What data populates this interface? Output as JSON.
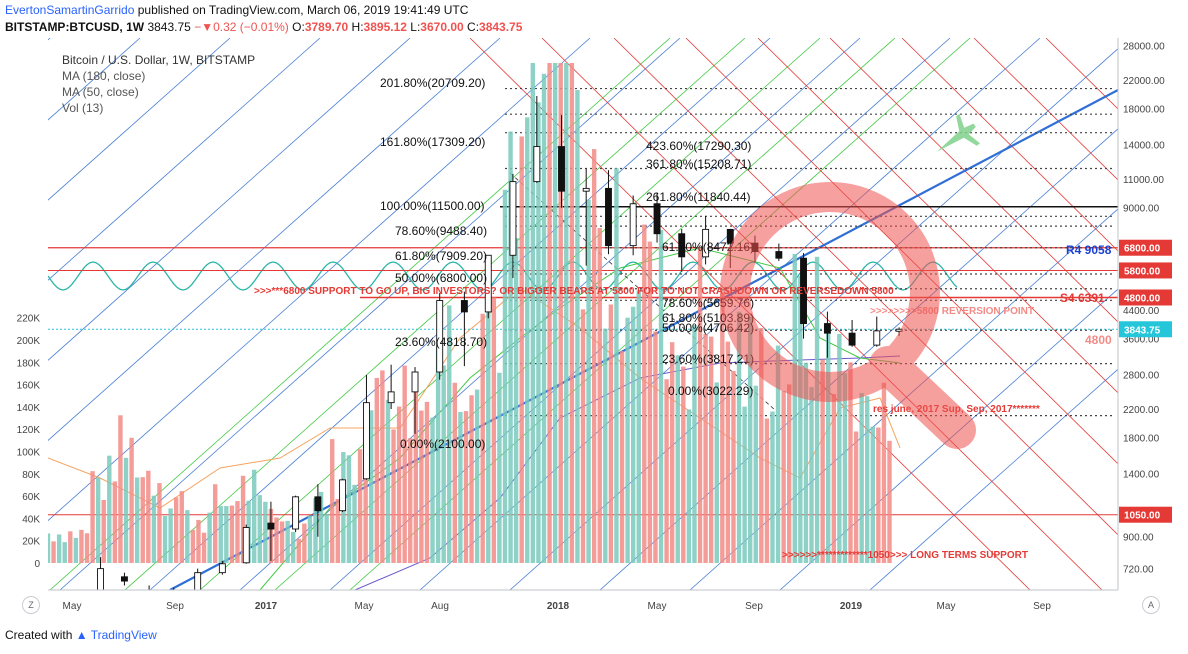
{
  "header": {
    "author": "EvertonSamartinGarrido",
    "published": "published on TradingView.com, March 06, 2019 19:41:49 UTC",
    "symbol": "BITSTAMP:BTCUSD, 1W",
    "price": "3843.75",
    "change": "−▼0.32 (−0.01%)",
    "open_label": "O:",
    "open": "3789.70",
    "high_label": "H:",
    "high": "3895.12",
    "low_label": "L:",
    "low": "3670.00",
    "close_label": "C:",
    "close": "3843.75"
  },
  "legend": {
    "title": "Bitcoin / U.S. Dollar, 1W, BITSTAMP",
    "ma180": "MA (180, close)",
    "ma50": "MA (50, close)",
    "vol": "Vol (13)"
  },
  "colors": {
    "up": "#79c9bd",
    "down": "#f28b86",
    "candle": "#2962ff",
    "red_line": "#e53935",
    "green_line": "#43c943",
    "blue_line": "#4a7fd4",
    "ma180": "#6a5acd",
    "ma50": "#43c943",
    "volume_ma": "#f4a460"
  },
  "footer": {
    "created": "Created with",
    "brand": "TradingView"
  },
  "buttons": {
    "left": "Z",
    "right": "A"
  },
  "chart_data": {
    "type": "candlestick",
    "price_scale": "log",
    "price_ticks": [
      720,
      900,
      1050,
      1400,
      1800,
      2200,
      2800,
      3600,
      4400,
      5800,
      6800,
      9000,
      11000,
      14000,
      18000,
      22000,
      28000
    ],
    "volume_ticks": [
      "0",
      "20K",
      "40K",
      "60K",
      "80K",
      "100K",
      "120K",
      "140K",
      "160K",
      "180K",
      "200K",
      "220K"
    ],
    "time_ticks": [
      "May",
      "Sep",
      "2017",
      "May",
      "Aug",
      "2018",
      "May",
      "Sep",
      "2019",
      "May",
      "Sep"
    ],
    "price_levels": [
      {
        "label": "6800.00",
        "value": 6800,
        "color": "#e53935"
      },
      {
        "label": "5800.00",
        "value": 5800,
        "color": "#e53935"
      },
      {
        "label": "4800.00",
        "value": 4800,
        "color": "#e53935"
      },
      {
        "label": "3843.75",
        "value": 3843.75,
        "color": "#26c6da"
      },
      {
        "label": "1050.00",
        "value": 1050,
        "color": "#e53935"
      }
    ],
    "annotations": [
      {
        "text": "161.80%(17309.20)"
      },
      {
        "text": "100.00%(11500.00)"
      },
      {
        "text": "78.60%(9488.40)"
      },
      {
        "text": "61.80%(7909.20)"
      },
      {
        "text": "50.00%(6800.00)"
      },
      {
        "text": "23.60%(4818.70)"
      },
      {
        "text": "0.00%(2100.00)"
      },
      {
        "text": "423.60%(17290.30)"
      },
      {
        "text": "361.80%(15208.71)"
      },
      {
        "text": "261.80%(11840.44)"
      },
      {
        "text": "61.80%(8472.16)"
      },
      {
        "text": "78.60%(5659.76)"
      },
      {
        "text": "61.80%(5103.89)"
      },
      {
        "text": "50.00%(4706.42)"
      },
      {
        "text": "23.60%(3817.21)"
      },
      {
        "text": "0.00%(3022.29)"
      },
      {
        "text": "201.80%(20709.20)"
      },
      {
        "text": "R4  9058"
      },
      {
        "text": "S4  6391"
      },
      {
        "text": "4800"
      },
      {
        "text": ">>>***6800 SUPPORT TO GO UP, BIG INVESTORS? OR BIGGER BEARS AT 5800 FOR TO NOT CRASHDOWN OR REVERSEDOWN 5800"
      },
      {
        "text": ">>>>>>>>5800 REVERSION POINT"
      },
      {
        "text": "res june, 2017  Sup,  Sep, 2017*******"
      },
      {
        "text": ">>>>>>*************1050>>> LONG TERMS SUPPORT"
      }
    ],
    "candles": [
      {
        "t": "2016-05",
        "o": 450,
        "h": 470,
        "l": 440,
        "c": 460
      },
      {
        "t": "2016-06",
        "o": 530,
        "h": 780,
        "l": 520,
        "c": 720
      },
      {
        "t": "2016-07",
        "o": 680,
        "h": 700,
        "l": 640,
        "c": 660
      },
      {
        "t": "2016-08",
        "o": 620,
        "h": 640,
        "l": 540,
        "c": 580
      },
      {
        "t": "2016-09",
        "o": 610,
        "h": 630,
        "l": 600,
        "c": 610
      },
      {
        "t": "2016-10",
        "o": 615,
        "h": 720,
        "l": 610,
        "c": 700
      },
      {
        "t": "2016-11",
        "o": 700,
        "h": 760,
        "l": 690,
        "c": 745
      },
      {
        "t": "2016-12",
        "o": 750,
        "h": 980,
        "l": 745,
        "c": 960
      },
      {
        "t": "2017-01",
        "o": 990,
        "h": 1150,
        "l": 760,
        "c": 950
      },
      {
        "t": "2017-02",
        "o": 950,
        "h": 1200,
        "l": 930,
        "c": 1190
      },
      {
        "t": "2017-03",
        "o": 1190,
        "h": 1300,
        "l": 900,
        "c": 1080
      },
      {
        "t": "2017-04",
        "o": 1080,
        "h": 1350,
        "l": 1070,
        "c": 1340
      },
      {
        "t": "2017-05",
        "o": 1350,
        "h": 2790,
        "l": 1340,
        "c": 2300
      },
      {
        "t": "2017-06",
        "o": 2300,
        "h": 3000,
        "l": 2200,
        "c": 2480
      },
      {
        "t": "2017-07",
        "o": 2480,
        "h": 2950,
        "l": 1850,
        "c": 2850
      },
      {
        "t": "2017-08",
        "o": 2850,
        "h": 4950,
        "l": 2700,
        "c": 4700
      },
      {
        "t": "2017-09",
        "o": 4700,
        "h": 5000,
        "l": 2970,
        "c": 4340
      },
      {
        "t": "2017-10",
        "o": 4340,
        "h": 6450,
        "l": 4150,
        "c": 6450
      },
      {
        "t": "2017-11",
        "o": 6450,
        "h": 11400,
        "l": 5500,
        "c": 10800
      },
      {
        "t": "2017-12",
        "o": 10800,
        "h": 19660,
        "l": 10700,
        "c": 13800
      },
      {
        "t": "2018-01",
        "o": 13800,
        "h": 17200,
        "l": 9000,
        "c": 10100
      },
      {
        "t": "2018-02",
        "o": 10100,
        "h": 11800,
        "l": 6000,
        "c": 10300
      },
      {
        "t": "2018-03",
        "o": 10300,
        "h": 11700,
        "l": 6500,
        "c": 6900
      },
      {
        "t": "2018-04",
        "o": 6900,
        "h": 9800,
        "l": 6450,
        "c": 9250
      },
      {
        "t": "2018-05",
        "o": 9250,
        "h": 10000,
        "l": 7050,
        "c": 7500
      },
      {
        "t": "2018-06",
        "o": 7500,
        "h": 7750,
        "l": 5750,
        "c": 6380
      },
      {
        "t": "2018-07",
        "o": 6380,
        "h": 8500,
        "l": 6050,
        "c": 7730
      },
      {
        "t": "2018-08",
        "o": 7730,
        "h": 7760,
        "l": 5900,
        "c": 7020
      },
      {
        "t": "2018-09",
        "o": 7020,
        "h": 7400,
        "l": 6150,
        "c": 6620
      },
      {
        "t": "2018-10",
        "o": 6620,
        "h": 7000,
        "l": 6200,
        "c": 6320
      },
      {
        "t": "2018-11",
        "o": 6320,
        "h": 6550,
        "l": 3600,
        "c": 4000
      },
      {
        "t": "2018-12",
        "o": 4000,
        "h": 4350,
        "l": 3150,
        "c": 3740
      },
      {
        "t": "2019-01",
        "o": 3740,
        "h": 4100,
        "l": 3400,
        "c": 3440
      },
      {
        "t": "2019-02",
        "o": 3440,
        "h": 4200,
        "l": 3400,
        "c": 3800
      },
      {
        "t": "2019-03",
        "o": 3790,
        "h": 3895,
        "l": 3670,
        "c": 3844
      }
    ]
  }
}
